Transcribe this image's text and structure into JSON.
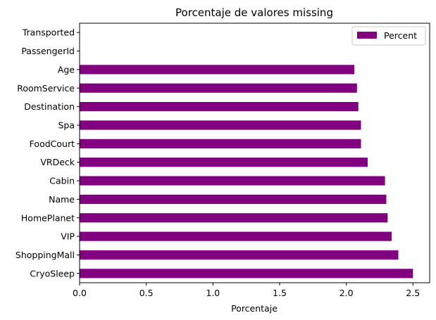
{
  "chart_data": {
    "type": "bar",
    "orientation": "horizontal",
    "title": "Porcentaje de valores missing",
    "xlabel": "Porcentaje",
    "ylabel": "",
    "xlim": [
      0,
      2.625
    ],
    "xticks": [
      "0.0",
      "0.5",
      "1.0",
      "1.5",
      "2.0",
      "2.5"
    ],
    "categories": [
      "CryoSleep",
      "ShoppingMall",
      "VIP",
      "HomePlanet",
      "Name",
      "Cabin",
      "VRDeck",
      "FoodCourt",
      "Spa",
      "Destination",
      "RoomService",
      "Age",
      "PassengerId",
      "Transported"
    ],
    "series": [
      {
        "name": "Percent",
        "color": "#800080",
        "values": [
          2.5,
          2.39,
          2.34,
          2.31,
          2.3,
          2.29,
          2.16,
          2.11,
          2.11,
          2.09,
          2.08,
          2.06,
          0.0,
          0.0
        ]
      }
    ],
    "legend": {
      "position": "top-right"
    },
    "grid": false
  }
}
